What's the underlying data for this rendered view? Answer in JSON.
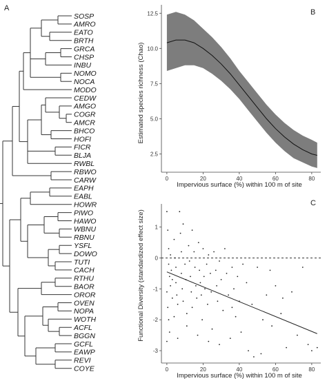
{
  "figure": {
    "panel_labels": [
      "A",
      "B",
      "C"
    ]
  },
  "tree": {
    "species": [
      "SOSP",
      "AMRO",
      "EATO",
      "BRTH",
      "GRCA",
      "CHSP",
      "INBU",
      "NOMO",
      "NOCA",
      "MODO",
      "CEDW",
      "AMGO",
      "COGR",
      "AMCR",
      "BHCO",
      "HOFI",
      "FICR",
      "BLJA",
      "RWBL",
      "RBWO",
      "CARW",
      "EAPH",
      "EABL",
      "HOWR",
      "PIWO",
      "HAWO",
      "WBNU",
      "RBNU",
      "YSFL",
      "DOWO",
      "TUTI",
      "CACH",
      "RTHU",
      "BAOR",
      "OROR",
      "OVEN",
      "NOPA",
      "WOTH",
      "ACFL",
      "BGGN",
      "GCFL",
      "EAWP",
      "REVI",
      "COYE"
    ]
  },
  "chart_data": [
    {
      "type": "line",
      "panel": "B",
      "xlabel": "Impervious surface (%) within 100 m of site",
      "ylabel": "Estimated species richness (Chao)",
      "xlim": [
        -3,
        85
      ],
      "ylim": [
        1.2,
        13.1
      ],
      "xticks": [
        0,
        20,
        40,
        60,
        80
      ],
      "yticks": [
        2.5,
        5.0,
        7.5,
        10.0,
        12.5
      ],
      "grid": false,
      "series": [
        {
          "x": [
            0,
            5,
            10,
            15,
            20,
            25,
            30,
            35,
            40,
            45,
            50,
            55,
            60,
            65,
            70,
            75,
            80,
            83
          ],
          "y": [
            10.4,
            10.6,
            10.6,
            10.4,
            10.0,
            9.5,
            8.9,
            8.2,
            7.4,
            6.6,
            5.8,
            5.0,
            4.3,
            3.7,
            3.2,
            2.8,
            2.5,
            2.4
          ],
          "lower": [
            8.4,
            8.6,
            8.8,
            8.8,
            8.6,
            8.2,
            7.7,
            7.1,
            6.4,
            5.6,
            4.8,
            4.0,
            3.3,
            2.7,
            2.2,
            1.9,
            1.6,
            1.5
          ],
          "upper": [
            12.4,
            12.6,
            12.4,
            12.0,
            11.4,
            10.8,
            10.1,
            9.3,
            8.4,
            7.6,
            6.8,
            6.0,
            5.3,
            4.7,
            4.2,
            3.8,
            3.5,
            3.3
          ]
        }
      ]
    },
    {
      "type": "scatter",
      "panel": "C",
      "xlabel": "Impervious surface (%) within 100 m of site",
      "ylabel": "Functional Diversity (standardized effect size)",
      "xlim": [
        -3,
        85
      ],
      "ylim": [
        -3.4,
        1.75
      ],
      "xticks": [
        0,
        20,
        40,
        60,
        80
      ],
      "yticks": [
        -3,
        -2,
        -1,
        0,
        1
      ],
      "grid": false,
      "reference_line_y": 0,
      "fit_line": {
        "x": [
          0,
          83
        ],
        "y": [
          -0.45,
          -2.45
        ]
      },
      "points": [
        [
          0,
          1.5
        ],
        [
          0.5,
          0.9
        ],
        [
          1,
          0.3
        ],
        [
          1,
          -0.2
        ],
        [
          1.5,
          -0.6
        ],
        [
          2,
          -0.9
        ],
        [
          0,
          -1.1
        ],
        [
          0.5,
          -1.6
        ],
        [
          1,
          -2.0
        ],
        [
          1.5,
          -2.4
        ],
        [
          0,
          -2.7
        ],
        [
          2,
          0.1
        ],
        [
          2.5,
          -0.4
        ],
        [
          3,
          -0.7
        ],
        [
          3,
          -1.3
        ],
        [
          4,
          0.6
        ],
        [
          4.5,
          0.0
        ],
        [
          5,
          -0.3
        ],
        [
          5,
          -0.8
        ],
        [
          5.5,
          -1.2
        ],
        [
          6,
          -1.5
        ],
        [
          4,
          -1.9
        ],
        [
          6,
          -2.6
        ],
        [
          7,
          1.5
        ],
        [
          7.5,
          0.8
        ],
        [
          8,
          0.2
        ],
        [
          8,
          -0.5
        ],
        [
          8.5,
          -1.0
        ],
        [
          9,
          -1.4
        ],
        [
          9,
          1.1
        ],
        [
          10,
          -0.2
        ],
        [
          10.5,
          -0.7
        ],
        [
          11,
          -1.8
        ],
        [
          11,
          -2.2
        ],
        [
          12,
          0.4
        ],
        [
          12.5,
          -0.1
        ],
        [
          13,
          -0.6
        ],
        [
          13.5,
          -1.1
        ],
        [
          14,
          -1.6
        ],
        [
          14,
          0.9
        ],
        [
          15,
          0.2
        ],
        [
          15.5,
          -0.3
        ],
        [
          16,
          -0.9
        ],
        [
          16.5,
          -1.3
        ],
        [
          17,
          -2.5
        ],
        [
          17.5,
          0.5
        ],
        [
          18,
          -0.4
        ],
        [
          18.5,
          -0.8
        ],
        [
          19,
          -1.2
        ],
        [
          19.5,
          -2.0
        ],
        [
          20,
          0.3
        ],
        [
          20.5,
          -0.6
        ],
        [
          21,
          -1.0
        ],
        [
          22,
          -0.2
        ],
        [
          22.5,
          -1.5
        ],
        [
          23,
          0.1
        ],
        [
          24,
          -0.5
        ],
        [
          24.5,
          -1.1
        ],
        [
          25,
          -2.3
        ],
        [
          26,
          0.2
        ],
        [
          27,
          -0.4
        ],
        [
          27.5,
          -0.9
        ],
        [
          28,
          -1.4
        ],
        [
          29,
          -0.1
        ],
        [
          30,
          -0.7
        ],
        [
          31,
          -1.7
        ],
        [
          32,
          0.3
        ],
        [
          33,
          -0.5
        ],
        [
          34,
          -1.2
        ],
        [
          35,
          -2.6
        ],
        [
          36,
          -0.3
        ],
        [
          37,
          -1.0
        ],
        [
          38,
          -1.9
        ],
        [
          39,
          -0.6
        ],
        [
          40,
          -1.4
        ],
        [
          42,
          -0.2
        ],
        [
          44,
          -0.8
        ],
        [
          45,
          -3.0
        ],
        [
          47,
          -1.5
        ],
        [
          48,
          -3.2
        ],
        [
          50,
          -0.3
        ],
        [
          52,
          -3.1
        ],
        [
          55,
          -1.2
        ],
        [
          57,
          -0.4
        ],
        [
          58,
          -2.2
        ],
        [
          60,
          -0.9
        ],
        [
          63,
          -1.8
        ],
        [
          66,
          -2.9
        ],
        [
          69,
          -1.1
        ],
        [
          72,
          -2.5
        ],
        [
          75,
          -0.3
        ],
        [
          78,
          -2.8
        ],
        [
          80,
          -3.0
        ],
        [
          83,
          -2.9
        ],
        [
          64,
          -1.3
        ],
        [
          53,
          -2.0
        ],
        [
          41,
          -2.4
        ],
        [
          36,
          -1.6
        ],
        [
          29,
          -2.8
        ],
        [
          23,
          -2.7
        ]
      ]
    }
  ]
}
